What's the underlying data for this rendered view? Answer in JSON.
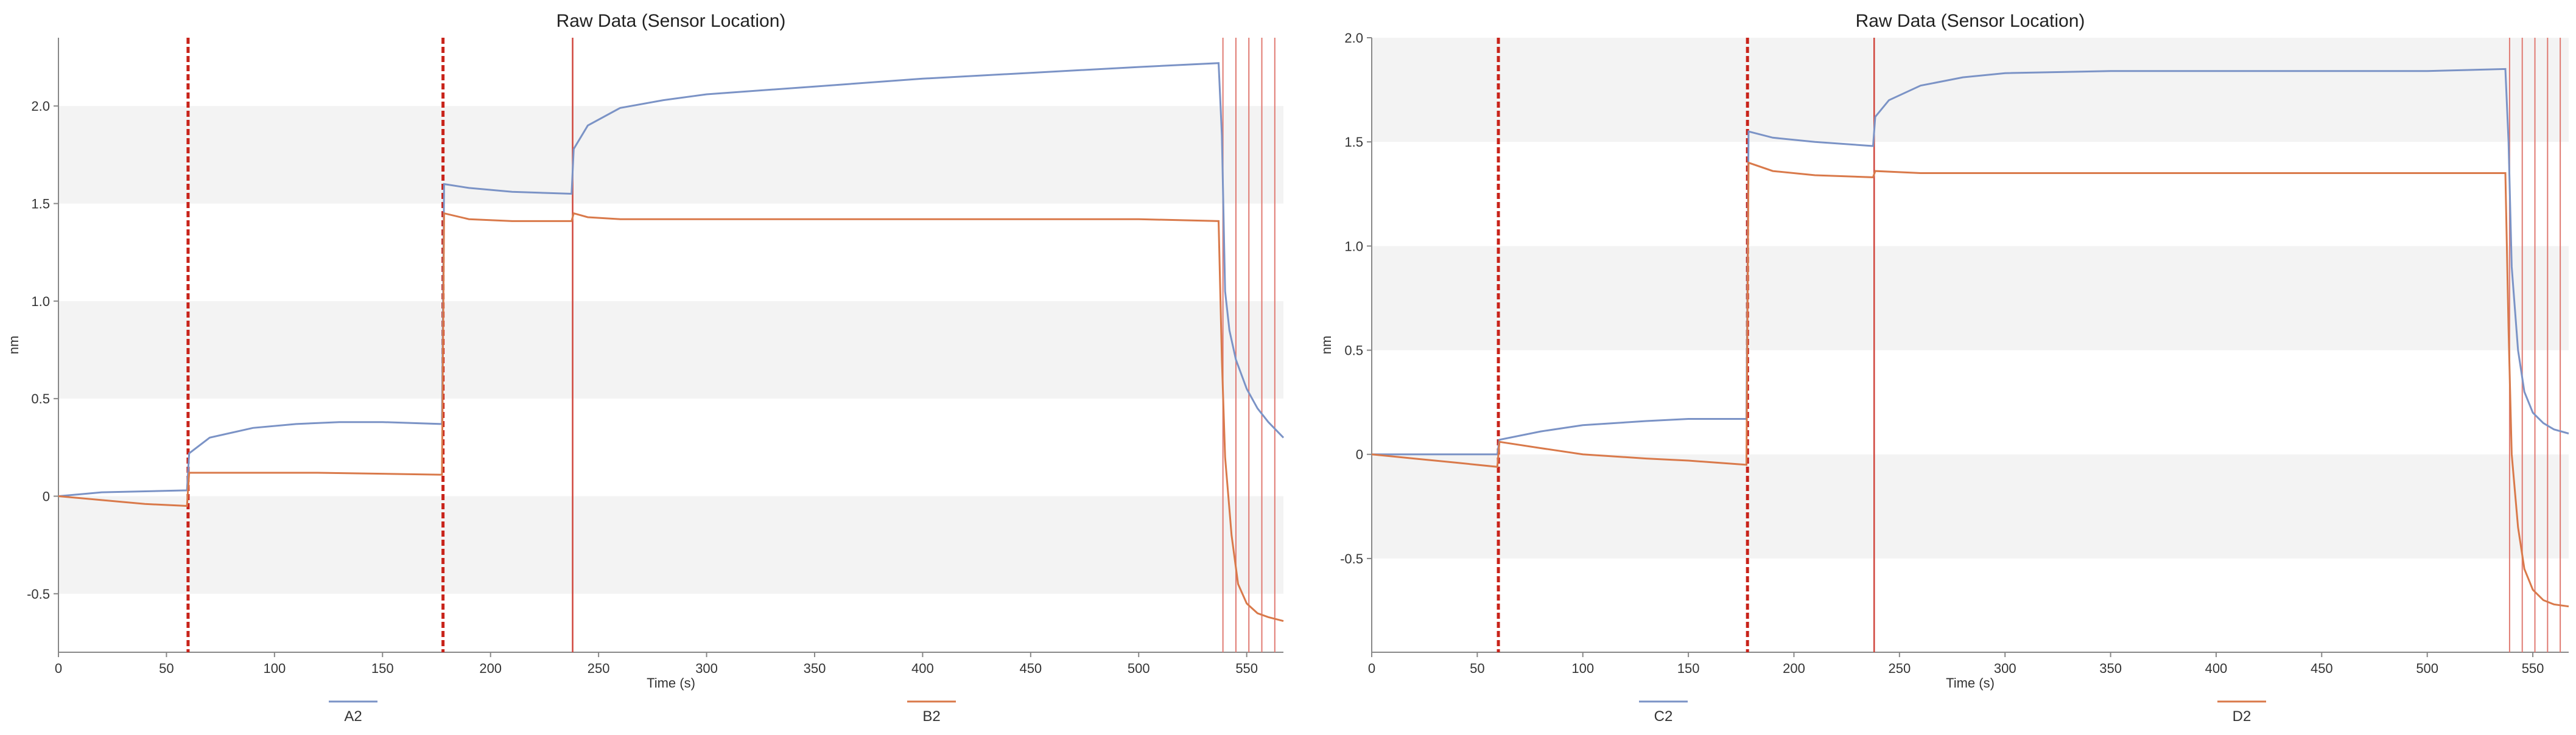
{
  "charts": [
    {
      "type": "line",
      "title": "Raw Data (Sensor Location)",
      "xlabel": "Time (s)",
      "ylabel": "nm",
      "xlim": [
        0,
        567
      ],
      "ylim": [
        -0.8,
        2.35
      ],
      "x_ticks": [
        0,
        50,
        100,
        150,
        200,
        250,
        300,
        350,
        400,
        450,
        500,
        550
      ],
      "y_ticks": [
        -0.5,
        0,
        0.5,
        1.0,
        1.5,
        2.0
      ],
      "y_tick_labels": [
        "-0.5",
        "0",
        "0.5",
        "1.0",
        "1.5",
        "2.0"
      ],
      "bands": [
        [
          -0.5,
          0
        ],
        [
          0.5,
          1.0
        ],
        [
          1.5,
          2.0
        ]
      ],
      "dashed_markers": [
        60,
        178
      ],
      "solid_markers": [
        238
      ],
      "end_markers": [
        539,
        545,
        551,
        557,
        563
      ],
      "legend": [
        "A2",
        "B2"
      ],
      "series": [
        {
          "name": "A2",
          "color": "#7b93c6",
          "points": [
            [
              0,
              0
            ],
            [
              20,
              0.02
            ],
            [
              59.5,
              0.03
            ],
            [
              60.5,
              0.22
            ],
            [
              70,
              0.3
            ],
            [
              90,
              0.35
            ],
            [
              110,
              0.37
            ],
            [
              130,
              0.38
            ],
            [
              150,
              0.38
            ],
            [
              177.5,
              0.37
            ],
            [
              178.5,
              1.6
            ],
            [
              190,
              1.58
            ],
            [
              210,
              1.56
            ],
            [
              237.5,
              1.55
            ],
            [
              238.5,
              1.78
            ],
            [
              245,
              1.9
            ],
            [
              260,
              1.99
            ],
            [
              280,
              2.03
            ],
            [
              300,
              2.06
            ],
            [
              350,
              2.1
            ],
            [
              400,
              2.14
            ],
            [
              450,
              2.17
            ],
            [
              500,
              2.2
            ],
            [
              537,
              2.22
            ],
            [
              538.5,
              1.85
            ],
            [
              540,
              1.05
            ],
            [
              542,
              0.85
            ],
            [
              545,
              0.7
            ],
            [
              550,
              0.55
            ],
            [
              555,
              0.45
            ],
            [
              560,
              0.38
            ],
            [
              567,
              0.3
            ]
          ]
        },
        {
          "name": "B2",
          "color": "#d9794a",
          "points": [
            [
              0,
              0
            ],
            [
              20,
              -0.02
            ],
            [
              40,
              -0.04
            ],
            [
              59.5,
              -0.05
            ],
            [
              60.5,
              0.12
            ],
            [
              80,
              0.12
            ],
            [
              120,
              0.12
            ],
            [
              177.5,
              0.11
            ],
            [
              178.5,
              1.45
            ],
            [
              190,
              1.42
            ],
            [
              210,
              1.41
            ],
            [
              237.5,
              1.41
            ],
            [
              238.5,
              1.45
            ],
            [
              245,
              1.43
            ],
            [
              260,
              1.42
            ],
            [
              300,
              1.42
            ],
            [
              350,
              1.42
            ],
            [
              400,
              1.42
            ],
            [
              450,
              1.42
            ],
            [
              500,
              1.42
            ],
            [
              537,
              1.41
            ],
            [
              538.5,
              0.7
            ],
            [
              540,
              0.2
            ],
            [
              543,
              -0.2
            ],
            [
              546,
              -0.45
            ],
            [
              550,
              -0.55
            ],
            [
              555,
              -0.6
            ],
            [
              560,
              -0.62
            ],
            [
              567,
              -0.64
            ]
          ]
        }
      ]
    },
    {
      "type": "line",
      "title": "Raw Data (Sensor Location)",
      "xlabel": "Time (s)",
      "ylabel": "nm",
      "xlim": [
        0,
        567
      ],
      "ylim": [
        -0.95,
        2.0
      ],
      "x_ticks": [
        0,
        50,
        100,
        150,
        200,
        250,
        300,
        350,
        400,
        450,
        500,
        550
      ],
      "y_ticks": [
        -0.5,
        0,
        0.5,
        1.0,
        1.5,
        2.0
      ],
      "y_tick_labels": [
        "-0.5",
        "0",
        "0.5",
        "1.0",
        "1.5",
        "2.0"
      ],
      "bands": [
        [
          -0.5,
          0
        ],
        [
          0.5,
          1.0
        ],
        [
          1.5,
          2.0
        ]
      ],
      "dashed_markers": [
        60,
        178
      ],
      "solid_markers": [
        238
      ],
      "end_markers": [
        539,
        545,
        551,
        557,
        563
      ],
      "legend": [
        "C2",
        "D2"
      ],
      "series": [
        {
          "name": "C2",
          "color": "#7b93c6",
          "points": [
            [
              0,
              0
            ],
            [
              30,
              0
            ],
            [
              59.5,
              0
            ],
            [
              60.5,
              0.07
            ],
            [
              80,
              0.11
            ],
            [
              100,
              0.14
            ],
            [
              130,
              0.16
            ],
            [
              150,
              0.17
            ],
            [
              177.5,
              0.17
            ],
            [
              178.5,
              1.55
            ],
            [
              190,
              1.52
            ],
            [
              210,
              1.5
            ],
            [
              237.5,
              1.48
            ],
            [
              238.5,
              1.62
            ],
            [
              245,
              1.7
            ],
            [
              260,
              1.77
            ],
            [
              280,
              1.81
            ],
            [
              300,
              1.83
            ],
            [
              350,
              1.84
            ],
            [
              400,
              1.84
            ],
            [
              450,
              1.84
            ],
            [
              500,
              1.84
            ],
            [
              537,
              1.85
            ],
            [
              538.5,
              1.5
            ],
            [
              540,
              0.9
            ],
            [
              543,
              0.5
            ],
            [
              546,
              0.3
            ],
            [
              550,
              0.2
            ],
            [
              555,
              0.15
            ],
            [
              560,
              0.12
            ],
            [
              567,
              0.1
            ]
          ]
        },
        {
          "name": "D2",
          "color": "#d9794a",
          "points": [
            [
              0,
              0
            ],
            [
              20,
              -0.02
            ],
            [
              40,
              -0.04
            ],
            [
              59.5,
              -0.06
            ],
            [
              60.5,
              0.06
            ],
            [
              80,
              0.03
            ],
            [
              100,
              0.0
            ],
            [
              130,
              -0.02
            ],
            [
              150,
              -0.03
            ],
            [
              177.5,
              -0.05
            ],
            [
              178.5,
              1.4
            ],
            [
              190,
              1.36
            ],
            [
              210,
              1.34
            ],
            [
              237.5,
              1.33
            ],
            [
              238.5,
              1.36
            ],
            [
              260,
              1.35
            ],
            [
              300,
              1.35
            ],
            [
              350,
              1.35
            ],
            [
              400,
              1.35
            ],
            [
              450,
              1.35
            ],
            [
              500,
              1.35
            ],
            [
              537,
              1.35
            ],
            [
              538.5,
              0.6
            ],
            [
              540,
              0.0
            ],
            [
              543,
              -0.35
            ],
            [
              546,
              -0.55
            ],
            [
              550,
              -0.65
            ],
            [
              555,
              -0.7
            ],
            [
              560,
              -0.72
            ],
            [
              567,
              -0.73
            ]
          ]
        }
      ]
    }
  ]
}
